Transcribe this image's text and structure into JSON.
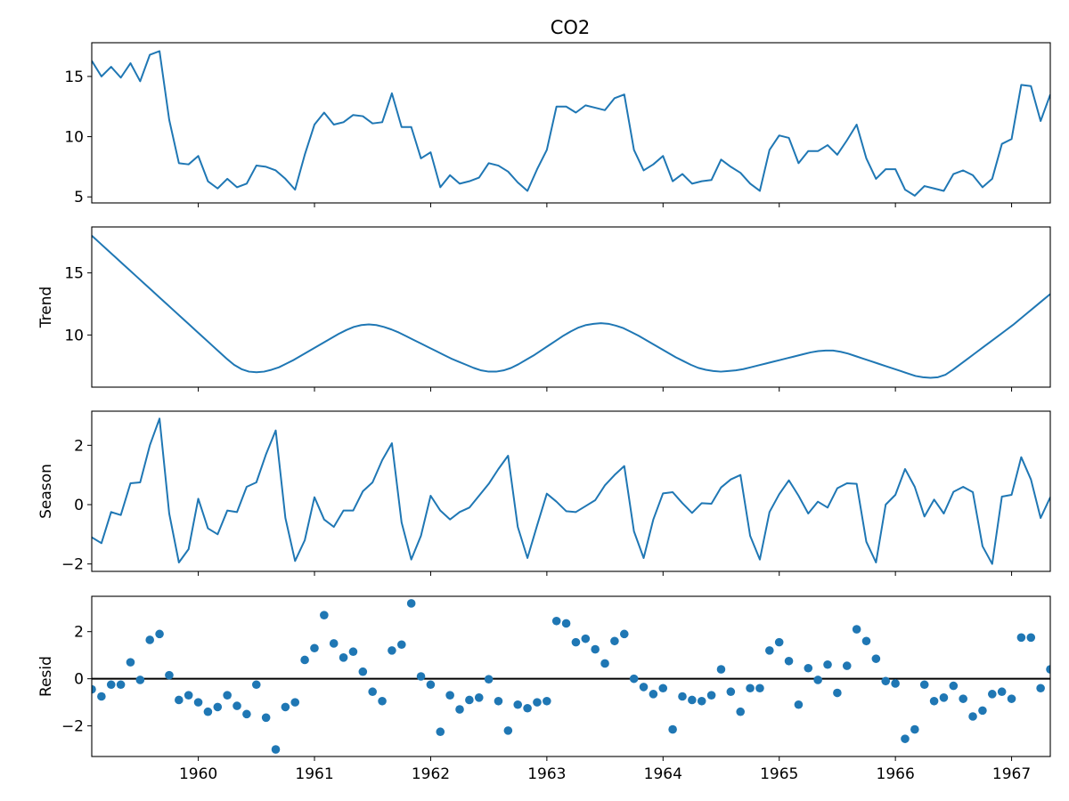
{
  "chart_data": {
    "type": "line",
    "title": "CO2",
    "x_range": [
      1959.083,
      1967.333
    ],
    "x_ticks": [
      "1960",
      "1961",
      "1962",
      "1963",
      "1964",
      "1965",
      "1966",
      "1967"
    ],
    "x_tick_values": [
      1960,
      1961,
      1962,
      1963,
      1964,
      1965,
      1966,
      1967
    ],
    "color": "#1f77b4",
    "panels": [
      {
        "name": "observed",
        "ylabel": "",
        "type": "line",
        "ylim": [
          4.5,
          17.8
        ],
        "y_ticks": [
          "5",
          "10",
          "15"
        ],
        "y_tick_values": [
          5,
          10,
          15
        ],
        "values": [
          16.3,
          15.0,
          15.8,
          14.9,
          16.1,
          14.6,
          16.8,
          17.1,
          11.4,
          7.8,
          7.7,
          8.4,
          6.3,
          5.7,
          6.5,
          5.8,
          6.1,
          7.6,
          7.5,
          7.2,
          6.5,
          5.6,
          8.5,
          11.0,
          12.0,
          11.0,
          11.2,
          11.8,
          11.7,
          11.1,
          11.2,
          13.6,
          10.8,
          10.8,
          8.2,
          8.7,
          5.8,
          6.8,
          6.1,
          6.3,
          6.6,
          7.8,
          7.6,
          7.1,
          6.2,
          5.5,
          7.3,
          8.9,
          12.5,
          12.5,
          12.0,
          12.6,
          12.4,
          12.2,
          13.2,
          13.5,
          8.9,
          7.2,
          7.7,
          8.4,
          6.3,
          6.9,
          6.1,
          6.3,
          6.4,
          8.1,
          7.5,
          7.0,
          6.1,
          5.5,
          8.9,
          10.1,
          9.9,
          7.8,
          8.8,
          8.8,
          9.3,
          8.5,
          9.7,
          11.0,
          8.2,
          6.5,
          7.3,
          7.3,
          5.6,
          5.1,
          5.9,
          5.7,
          5.5,
          6.9,
          7.2,
          6.8,
          5.8,
          6.5,
          9.4,
          9.8,
          14.3,
          14.2,
          11.3,
          13.5
        ],
        "zero_line": false
      },
      {
        "name": "trend",
        "ylabel": "Trend",
        "type": "line",
        "ylim": [
          5.8,
          18.7
        ],
        "y_ticks": [
          "10",
          "15"
        ],
        "y_tick_values": [
          10,
          15
        ],
        "values": [
          18.0,
          17.45,
          16.9,
          16.35,
          15.8,
          15.25,
          14.7,
          14.15,
          13.6,
          13.05,
          12.5,
          11.95,
          11.4,
          10.85,
          10.3,
          9.75,
          9.2,
          8.65,
          8.1,
          7.6,
          7.25,
          7.05,
          7.0,
          7.05,
          7.2,
          7.4,
          7.7,
          8.0,
          8.35,
          8.7,
          9.05,
          9.4,
          9.75,
          10.1,
          10.4,
          10.65,
          10.8,
          10.85,
          10.8,
          10.65,
          10.45,
          10.2,
          9.9,
          9.6,
          9.3,
          9.0,
          8.7,
          8.4,
          8.1,
          7.85,
          7.6,
          7.35,
          7.15,
          7.05,
          7.05,
          7.15,
          7.35,
          7.65,
          8.0,
          8.35,
          8.75,
          9.15,
          9.55,
          9.95,
          10.3,
          10.6,
          10.8,
          10.9,
          10.95,
          10.9,
          10.75,
          10.55,
          10.25,
          9.95,
          9.6,
          9.25,
          8.9,
          8.55,
          8.2,
          7.9,
          7.6,
          7.35,
          7.2,
          7.1,
          7.05,
          7.1,
          7.15,
          7.25,
          7.4,
          7.55,
          7.7,
          7.85,
          8.0,
          8.15,
          8.3,
          8.45,
          8.6,
          8.7,
          8.75,
          8.75,
          8.65,
          8.5,
          8.3,
          8.1,
          7.9,
          7.7,
          7.5,
          7.3,
          7.1,
          6.9,
          6.7,
          6.6,
          6.55,
          6.6,
          6.8,
          7.2,
          7.65,
          8.1,
          8.55,
          9.0,
          9.45,
          9.9,
          10.35,
          10.8,
          11.3,
          11.8,
          12.3,
          12.8,
          13.3
        ]
      },
      {
        "name": "season",
        "ylabel": "Season",
        "type": "line",
        "ylim": [
          -2.25,
          3.15
        ],
        "y_ticks": [
          "−2",
          "0",
          "2"
        ],
        "y_tick_values": [
          -2,
          0,
          2
        ],
        "values": [
          -1.1,
          -1.3,
          -0.25,
          -0.35,
          0.72,
          0.75,
          2.0,
          2.9,
          -0.3,
          -1.95,
          -1.5,
          0.2,
          -0.8,
          -1.0,
          -0.2,
          -0.25,
          0.6,
          0.75,
          1.7,
          2.5,
          -0.45,
          -1.9,
          -1.2,
          0.25,
          -0.5,
          -0.75,
          -0.2,
          -0.2,
          0.45,
          0.75,
          1.5,
          2.07,
          -0.6,
          -1.85,
          -1.05,
          0.3,
          -0.2,
          -0.5,
          -0.25,
          -0.1,
          0.3,
          0.7,
          1.2,
          1.65,
          -0.75,
          -1.8,
          -0.7,
          0.37,
          0.1,
          -0.22,
          -0.25,
          -0.05,
          0.15,
          0.65,
          1.0,
          1.3,
          -0.9,
          -1.8,
          -0.5,
          0.38,
          0.42,
          0.05,
          -0.28,
          0.05,
          0.03,
          0.58,
          0.85,
          1.0,
          -1.05,
          -1.85,
          -0.25,
          0.35,
          0.82,
          0.3,
          -0.3,
          0.1,
          -0.1,
          0.55,
          0.72,
          0.7,
          -1.25,
          -1.95,
          0.0,
          0.33,
          1.2,
          0.6,
          -0.4,
          0.17,
          -0.3,
          0.43,
          0.6,
          0.42,
          -1.4,
          -2.0,
          0.27,
          0.33,
          1.6,
          0.85,
          -0.45,
          0.25
        ]
      },
      {
        "name": "resid",
        "ylabel": "Resid",
        "type": "scatter",
        "ylim": [
          -3.3,
          3.5
        ],
        "y_ticks": [
          "−2",
          "0",
          "2"
        ],
        "y_tick_values": [
          -2,
          0,
          2
        ],
        "zero_line": true,
        "values": [
          -0.45,
          -0.75,
          -0.25,
          -0.25,
          0.7,
          -0.05,
          1.65,
          1.9,
          0.15,
          -0.9,
          -0.7,
          -1.0,
          -1.4,
          -1.2,
          -0.7,
          -1.15,
          -1.5,
          -0.25,
          -1.65,
          -3.0,
          -1.2,
          -1.0,
          0.8,
          1.3,
          2.7,
          1.5,
          0.9,
          1.15,
          0.3,
          -0.55,
          -0.95,
          1.2,
          1.45,
          3.2,
          0.1,
          -0.25,
          -2.25,
          -0.7,
          -1.3,
          -0.9,
          -0.8,
          -0.02,
          -0.95,
          -2.2,
          -1.1,
          -1.25,
          -1.0,
          -0.95,
          2.45,
          2.35,
          1.55,
          1.7,
          1.25,
          0.65,
          1.6,
          1.9,
          0.0,
          -0.35,
          -0.65,
          -0.4,
          -2.15,
          -0.75,
          -0.9,
          -0.95,
          -0.7,
          0.4,
          -0.55,
          -1.4,
          -0.4,
          -0.4,
          1.2,
          1.55,
          0.75,
          -1.1,
          0.45,
          -0.05,
          0.6,
          -0.6,
          0.55,
          2.1,
          1.6,
          0.85,
          -0.1,
          -0.2,
          -2.55,
          -2.15,
          -0.25,
          -0.95,
          -0.8,
          -0.3,
          -0.85,
          -1.6,
          -1.35,
          -0.65,
          -0.55,
          -0.85,
          1.75,
          1.75,
          -0.4,
          0.4
        ]
      }
    ]
  }
}
